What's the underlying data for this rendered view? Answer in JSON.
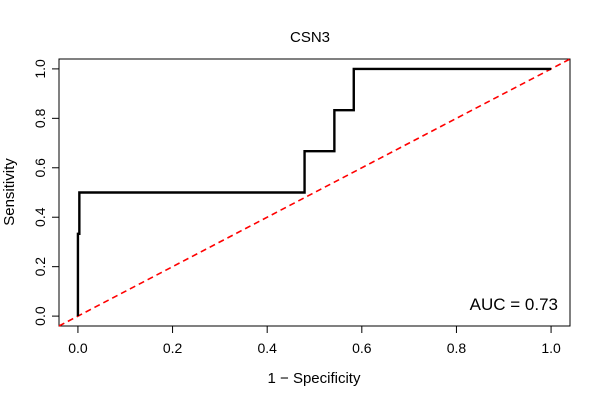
{
  "chart_data": {
    "type": "line",
    "title": "CSN3",
    "xlabel": "1 − Specificity",
    "ylabel": "Sensitivity",
    "xlim": [
      -0.04,
      1.04
    ],
    "ylim": [
      -0.04,
      1.04
    ],
    "x_ticks": [
      0.0,
      0.2,
      0.4,
      0.6,
      0.8,
      1.0
    ],
    "x_tick_labels": [
      "0.0",
      "0.2",
      "0.4",
      "0.6",
      "0.8",
      "1.0"
    ],
    "y_ticks": [
      0.0,
      0.2,
      0.4,
      0.6,
      0.8,
      1.0
    ],
    "y_tick_labels": [
      "0.0",
      "0.2",
      "0.4",
      "0.6",
      "0.8",
      "1.0"
    ],
    "grid": false,
    "series": [
      {
        "name": "ROC",
        "color": "#000000",
        "x": [
          0.0,
          0.0,
          0.003,
          0.003,
          0.008,
          0.008,
          0.479,
          0.479,
          0.542,
          0.542,
          0.583,
          0.583,
          1.0
        ],
        "y": [
          0.0,
          0.333,
          0.333,
          0.5,
          0.5,
          0.5,
          0.5,
          0.667,
          0.667,
          0.833,
          0.833,
          1.0,
          1.0
        ]
      },
      {
        "name": "Reference diagonal",
        "color": "#ff0000",
        "style": "dashed",
        "x": [
          -0.04,
          1.04
        ],
        "y": [
          -0.04,
          1.04
        ]
      }
    ],
    "annotation": "AUC = 0.73"
  }
}
